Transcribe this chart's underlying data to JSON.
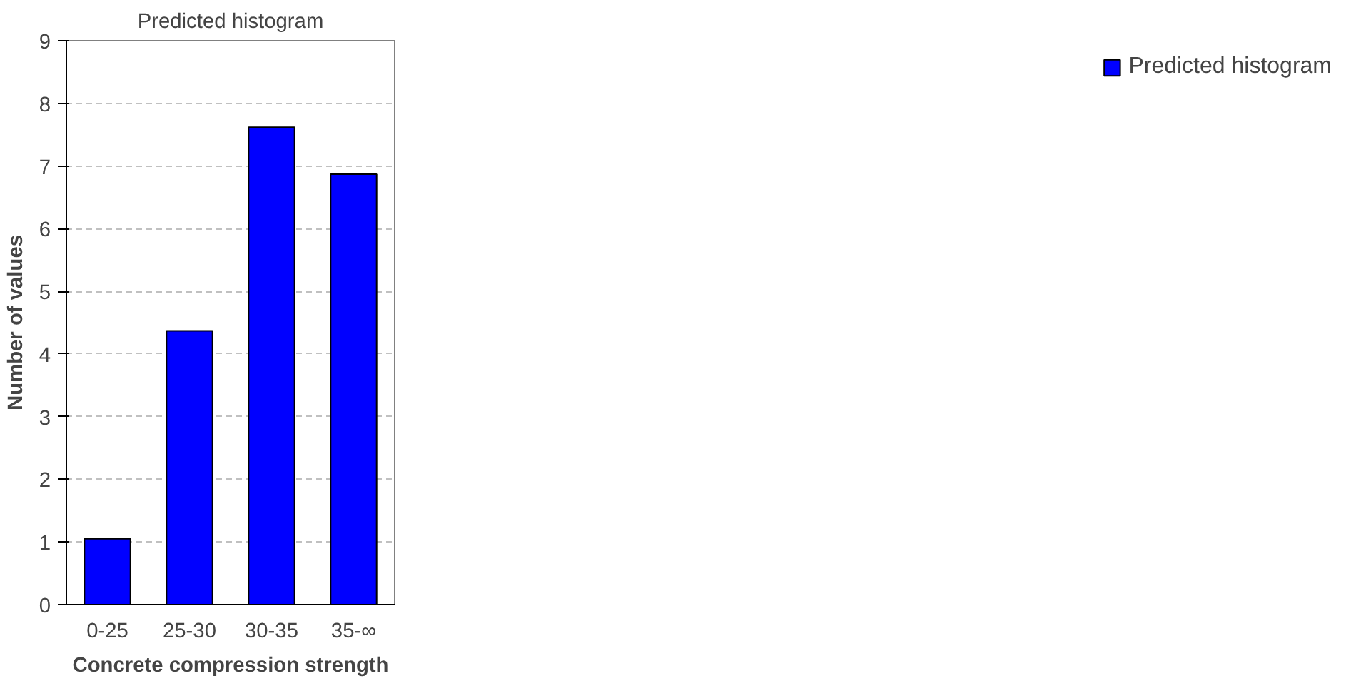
{
  "chart_data": {
    "type": "bar",
    "title": "Predicted histogram",
    "xlabel": "Concrete compression strength",
    "ylabel": "Number of values",
    "categories": [
      "0-25",
      "25-30",
      "30-35",
      "35-∞"
    ],
    "series": [
      {
        "name": "Predicted histogram",
        "color": "#0000ff",
        "values": [
          1.05,
          4.37,
          7.62,
          6.87
        ]
      }
    ],
    "ylim": [
      0,
      9
    ],
    "yticks": [
      0,
      1,
      2,
      3,
      4,
      5,
      6,
      7,
      8,
      9
    ],
    "grid": "y",
    "legend": "right"
  }
}
